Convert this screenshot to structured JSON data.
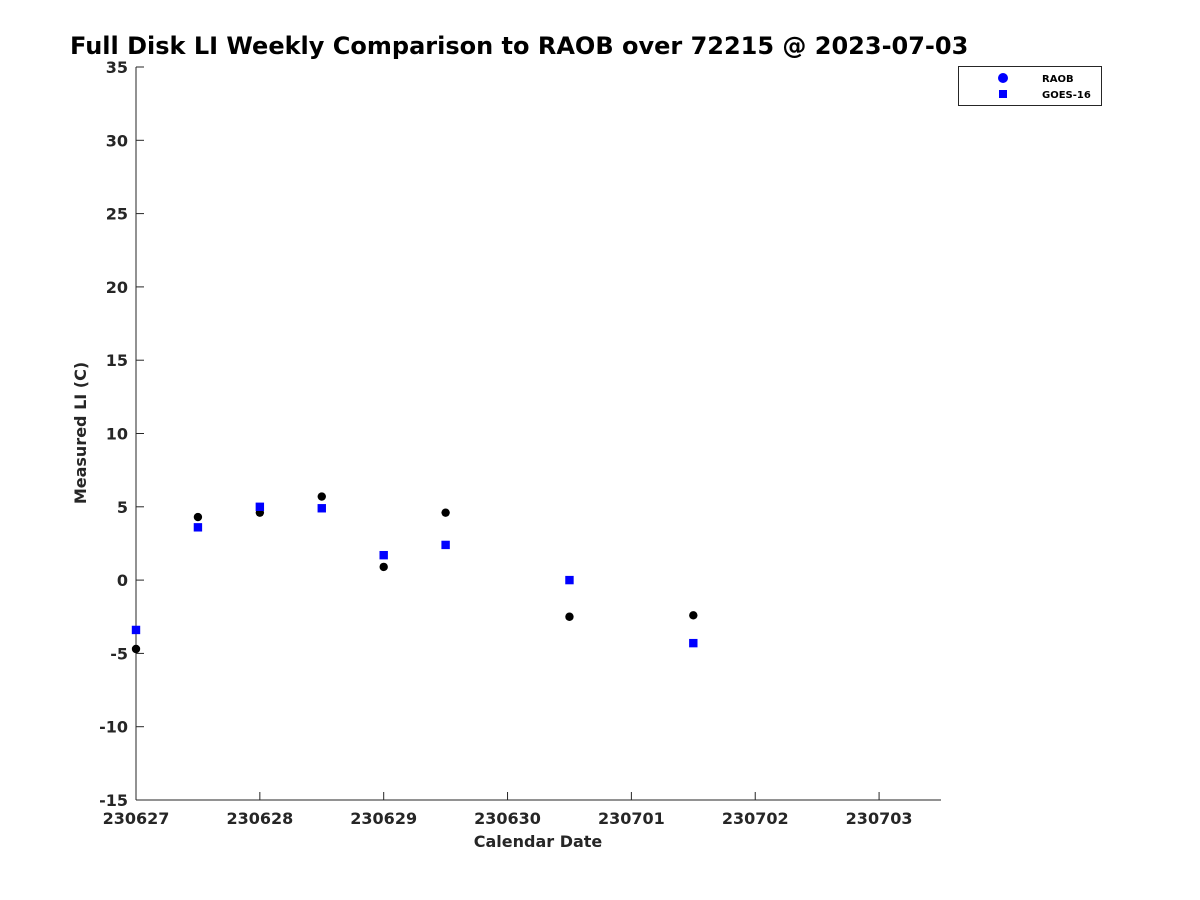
{
  "chart_data": {
    "type": "scatter",
    "title": "Full Disk LI Weekly Comparison to RAOB over 72215 @ 2023-07-03",
    "xlabel": "Calendar Date",
    "ylabel": "Measured LI (C)",
    "x_tick_labels": [
      "230627",
      "230628",
      "230629",
      "230630",
      "230701",
      "230702",
      "230703"
    ],
    "x_tick_values": [
      0,
      1,
      2,
      3,
      4,
      5,
      6
    ],
    "xlim": [
      0,
      6.5
    ],
    "ylim": [
      -15,
      35
    ],
    "y_ticks": [
      -15,
      -10,
      -5,
      0,
      5,
      10,
      15,
      20,
      25,
      30,
      35
    ],
    "grid": false,
    "legend_position": "top-right",
    "series": [
      {
        "name": "RAOB",
        "marker": "circle",
        "color": "#000000",
        "legend_color": "#0000ff",
        "x": [
          0,
          0.5,
          1,
          1.5,
          2,
          2.5,
          3.5,
          4.5
        ],
        "y": [
          -4.7,
          4.3,
          4.6,
          5.7,
          0.9,
          4.6,
          -2.5,
          -2.4
        ]
      },
      {
        "name": "GOES-16",
        "marker": "square",
        "color": "#0000ff",
        "legend_color": "#0000ff",
        "x": [
          0,
          0.5,
          1,
          1.5,
          2,
          2.5,
          3.5,
          4.5
        ],
        "y": [
          -3.4,
          3.6,
          5.0,
          4.9,
          1.7,
          2.4,
          0.0,
          -4.3
        ]
      }
    ]
  }
}
